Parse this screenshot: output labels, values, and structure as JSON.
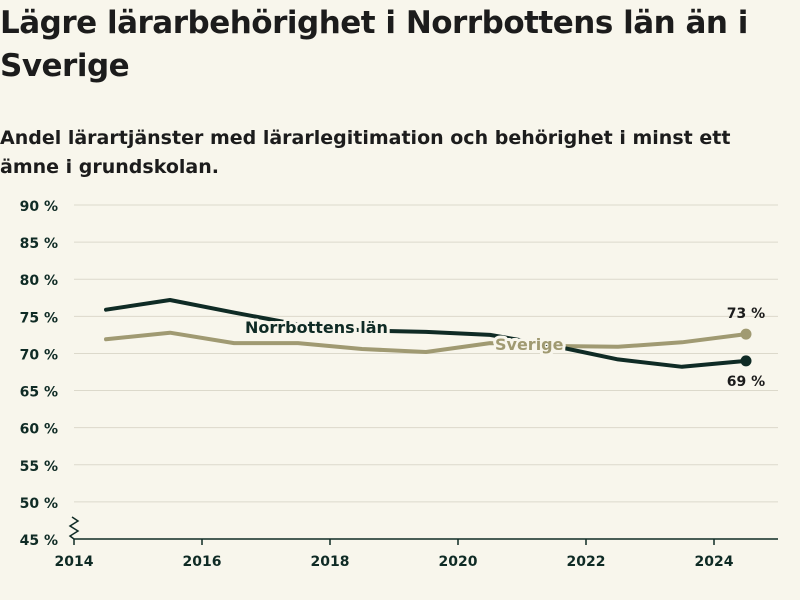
{
  "title": "Lägre lärarbehörighet i Norrbottens län än i Sverige",
  "subtitle": "Andel lärartjänster med lärarlegitimation och behörighet i minst ett ämne i grundskolan.",
  "chart_data": {
    "type": "line",
    "x": [
      2014.5,
      2015.5,
      2016.5,
      2017.5,
      2018.5,
      2019.5,
      2020.5,
      2021.5,
      2022.5,
      2023.5,
      2024.5
    ],
    "y_ticks": [
      "90 %",
      "85 %",
      "80 %",
      "75 %",
      "70 %",
      "65 %",
      "60 %",
      "55 %",
      "50 %",
      "45 %"
    ],
    "x_ticks": [
      "2014",
      "2016",
      "2018",
      "2020",
      "2022",
      "2024"
    ],
    "ylim": [
      45,
      90
    ],
    "xlim": [
      2014,
      2025
    ],
    "y_axis_break": true,
    "grid": true,
    "series": [
      {
        "name": "Norrbottens län",
        "color": "#0f2b25",
        "values": [
          75.9,
          77.2,
          75.5,
          73.9,
          73.1,
          72.9,
          72.5,
          71.0,
          69.2,
          68.2,
          69.0
        ],
        "end_label": "69 %"
      },
      {
        "name": "Sverige",
        "color": "#a09a72",
        "values": [
          71.9,
          72.8,
          71.4,
          71.4,
          70.6,
          70.2,
          71.4,
          71.0,
          70.9,
          71.5,
          72.6
        ],
        "end_label": "73 %"
      }
    ]
  }
}
